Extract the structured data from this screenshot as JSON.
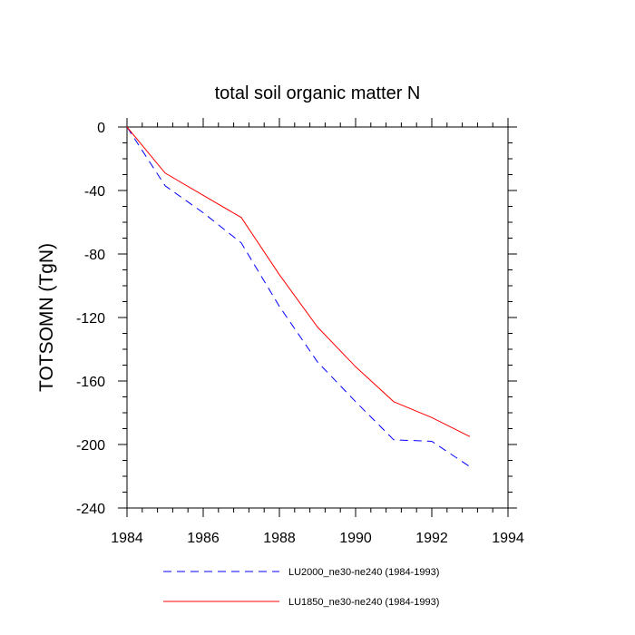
{
  "chart_data": {
    "type": "line",
    "title": "total soil organic matter N",
    "xlabel": "",
    "ylabel": "TOTSOMN  (TgN)",
    "xlim": [
      1984,
      1994
    ],
    "ylim": [
      -240,
      0
    ],
    "x_ticks": [
      1984,
      1986,
      1988,
      1990,
      1992,
      1994
    ],
    "y_ticks": [
      0,
      -40,
      -80,
      -120,
      -160,
      -200,
      -240
    ],
    "x_tick_labels": [
      "1984",
      "1986",
      "1988",
      "1990",
      "1992",
      "1994"
    ],
    "y_tick_labels": [
      "0",
      "-40",
      "-80",
      "-120",
      "-160",
      "-200",
      "-240"
    ],
    "grid": false,
    "legend_position": "bottom",
    "series": [
      {
        "name": "LU2000_ne30-ne240 (1984-1993)",
        "color": "#0000ff",
        "style": "dashed",
        "x": [
          1984,
          1985,
          1986,
          1987,
          1988,
          1989,
          1990,
          1991,
          1992,
          1993
        ],
        "y": [
          0,
          -37,
          -54,
          -73,
          -113,
          -148,
          -173,
          -197,
          -198,
          -214
        ]
      },
      {
        "name": "LU1850_ne30-ne240 (1984-1993)",
        "color": "#ff0000",
        "style": "solid",
        "x": [
          1984,
          1985,
          1986,
          1987,
          1988,
          1989,
          1990,
          1991,
          1992,
          1993
        ],
        "y": [
          0,
          -29,
          -43,
          -57,
          -93,
          -126,
          -151,
          -173,
          -183,
          -195
        ]
      }
    ]
  }
}
